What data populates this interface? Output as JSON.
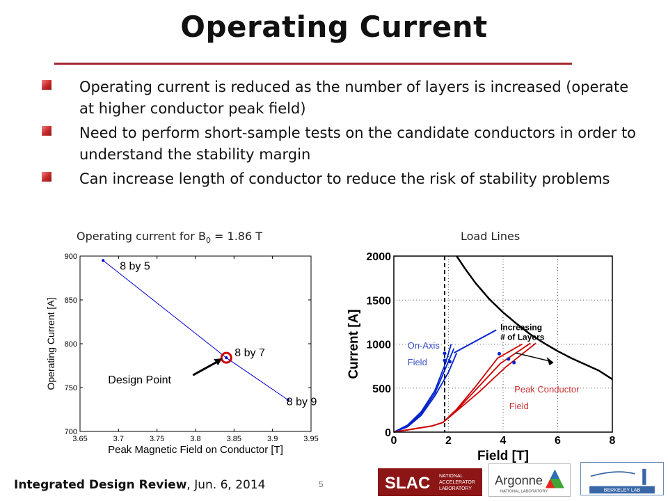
{
  "slide": {
    "title": "Operating Current",
    "bullets": [
      "Operating current is reduced as the number of layers is increased (operate at higher conductor peak field)",
      "Need to perform short-sample tests on the candidate conductors in order to understand the stability margin",
      "Can increase length of conductor to reduce the risk of stability problems"
    ],
    "footer": {
      "bold": "Integrated Design Review",
      "rest": ", Jun. 6, 2014"
    },
    "page_number": "5",
    "accent_color": "#a3282e",
    "logos": [
      {
        "name": "slac-logo",
        "text": "SLAC",
        "subtext": [
          "NATIONAL",
          "ACCELERATOR",
          "LABORATORY"
        ]
      },
      {
        "name": "argonne-logo",
        "text": "Argonne",
        "subtext": [
          "NATIONAL LABORATORY"
        ]
      },
      {
        "name": "berkeley-lab-logo",
        "text": "BERKELEY LAB"
      }
    ]
  },
  "chart_data": [
    {
      "type": "line",
      "caption_prefix": "Operating current for B",
      "caption_sub": "0",
      "caption_suffix": " = 1.86 T",
      "xlabel": "Peak Magnetic Field on Conductor [T]",
      "ylabel": "Operating Current [A]",
      "xlim": [
        3.65,
        3.95
      ],
      "ylim": [
        700,
        900
      ],
      "xticks": [
        3.65,
        3.7,
        3.75,
        3.8,
        3.85,
        3.9,
        3.95
      ],
      "yticks": [
        700,
        750,
        800,
        850,
        900
      ],
      "grid": false,
      "line_color": "#0000cc",
      "series": [
        {
          "x": [
            3.68,
            3.84,
            3.92
          ],
          "y": [
            895,
            784,
            736
          ]
        }
      ],
      "point_labels": [
        {
          "text": "8 by 5",
          "x": 3.68,
          "y": 895
        },
        {
          "text": "8 by 7",
          "x": 3.84,
          "y": 784
        },
        {
          "text": "8 by 9",
          "x": 3.92,
          "y": 736
        }
      ],
      "annotation": {
        "text": "Design Point",
        "x": 3.84,
        "y": 784,
        "marker_color": "#cc0000"
      }
    },
    {
      "type": "line",
      "caption": "Load Lines",
      "xlabel": "Field [T]",
      "ylabel": "Current [A]",
      "xlim": [
        0,
        8
      ],
      "ylim": [
        0,
        2000
      ],
      "xticks": [
        0,
        2,
        4,
        6,
        8
      ],
      "yticks": [
        0,
        500,
        1000,
        1500,
        2000
      ],
      "grid": true,
      "vline": {
        "x": 1.86,
        "style": "dashed"
      },
      "critical_curve": {
        "color": "#000000",
        "x": [
          2.3,
          2.6,
          3.0,
          3.5,
          4.0,
          4.5,
          5.0,
          5.5,
          6.0,
          6.5,
          7.0,
          7.5,
          8.0
        ],
        "y": [
          2000,
          1860,
          1690,
          1510,
          1360,
          1230,
          1110,
          1010,
          920,
          840,
          770,
          700,
          600
        ]
      },
      "series": [
        {
          "group": "on-axis",
          "color": "#0022cc",
          "x": [
            0,
            0.5,
            1.0,
            1.5,
            1.9,
            2.1
          ],
          "y": [
            0,
            80,
            230,
            470,
            790,
            1000
          ]
        },
        {
          "group": "on-axis",
          "color": "#0022cc",
          "x": [
            0,
            0.5,
            1.0,
            1.5,
            1.9,
            2.2
          ],
          "y": [
            0,
            70,
            210,
            440,
            730,
            950
          ]
        },
        {
          "group": "on-axis",
          "color": "#0022cc",
          "x": [
            0,
            0.5,
            1.0,
            1.5,
            2.0,
            2.3
          ],
          "y": [
            0,
            60,
            190,
            410,
            680,
            900
          ]
        },
        {
          "group": "peak",
          "color": "#cc0000",
          "x": [
            0,
            0.8,
            1.4,
            1.8,
            2.3,
            3.0,
            3.8,
            4.7
          ],
          "y": [
            0,
            40,
            70,
            110,
            260,
            520,
            840,
            1000
          ]
        },
        {
          "group": "peak",
          "color": "#cc0000",
          "x": [
            0,
            0.8,
            1.4,
            1.8,
            2.3,
            3.0,
            3.9,
            5.0
          ],
          "y": [
            0,
            40,
            70,
            110,
            250,
            480,
            780,
            1010
          ]
        },
        {
          "group": "peak",
          "color": "#cc0000",
          "x": [
            0,
            0.8,
            1.4,
            1.8,
            2.3,
            3.1,
            4.1,
            5.2
          ],
          "y": [
            0,
            40,
            70,
            110,
            240,
            450,
            740,
            1010
          ]
        }
      ],
      "points": [
        {
          "x": 1.86,
          "y": 895,
          "color": "#0022cc"
        },
        {
          "x": 1.86,
          "y": 815,
          "color": "#0022cc"
        },
        {
          "x": 2.05,
          "y": 800,
          "color": "#0022cc"
        },
        {
          "x": 3.86,
          "y": 890,
          "color": "#0022cc"
        },
        {
          "x": 4.2,
          "y": 830,
          "color": "#0022cc"
        },
        {
          "x": 4.4,
          "y": 790,
          "color": "#0022cc"
        }
      ],
      "annotations": [
        {
          "text": "Increasing",
          "line2": "# of Layers",
          "x": 3.9,
          "y": 1160,
          "color": "#000000"
        },
        {
          "text": "On-Axis",
          "line2": "Field",
          "x": 0.5,
          "y": 950,
          "color": "#3a50c8"
        },
        {
          "text": "Peak Conductor",
          "line2": "Field",
          "x": 5.6,
          "y": 450,
          "color": "#cc3333"
        }
      ]
    }
  ]
}
